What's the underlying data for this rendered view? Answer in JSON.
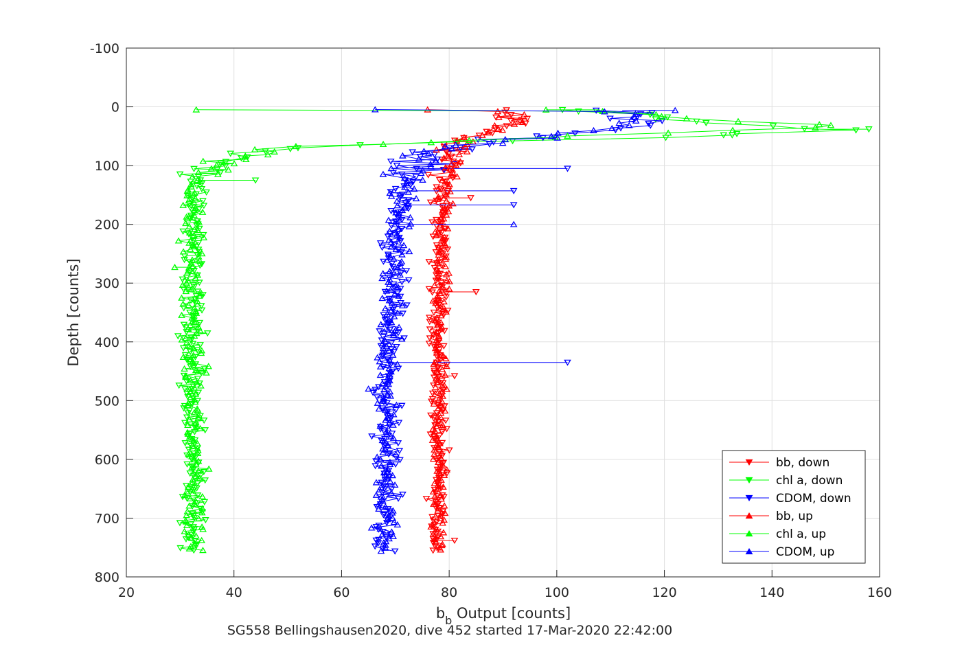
{
  "chart_data": {
    "type": "scatter",
    "xlabel_base": "b",
    "xlabel_sub": "b",
    "xlabel_rest": " Output [counts]",
    "ylabel": "Depth [counts]",
    "caption": "SG558 Bellingshausen2020, dive 452 started 17-Mar-2020 22:42:00",
    "xlim": [
      20,
      160
    ],
    "ylim": [
      -100,
      800
    ],
    "y_reversed": true,
    "grid": true,
    "legend_position": "bottom-right",
    "x_ticks": [
      "20",
      "40",
      "60",
      "80",
      "100",
      "120",
      "140",
      "160"
    ],
    "y_ticks": [
      "-100",
      "0",
      "100",
      "200",
      "300",
      "400",
      "500",
      "600",
      "700",
      "800"
    ],
    "series": [
      {
        "name": "bb, down",
        "color": "#ff0000",
        "marker": "triangle-down",
        "profile": [
          [
            5,
            89
          ],
          [
            30,
            92
          ],
          [
            45,
            86
          ],
          [
            60,
            82
          ],
          [
            80,
            80
          ],
          [
            100,
            79
          ],
          [
            150,
            78.5
          ],
          [
            250,
            78
          ],
          [
            400,
            78
          ],
          [
            600,
            78
          ],
          [
            755,
            77.5
          ]
        ],
        "spread": 1.2,
        "outliers": [
          [
            155,
            84
          ],
          [
            315,
            85
          ],
          [
            458,
            81
          ],
          [
            738,
            81
          ]
        ]
      },
      {
        "name": "chl a, down",
        "color": "#00ff00",
        "marker": "triangle-down",
        "profile": [
          [
            5,
            100
          ],
          [
            15,
            118
          ],
          [
            35,
            140
          ],
          [
            40,
            158
          ],
          [
            55,
            110
          ],
          [
            62,
            70
          ],
          [
            68,
            55
          ],
          [
            75,
            45
          ],
          [
            85,
            40
          ],
          [
            100,
            37
          ],
          [
            115,
            35
          ],
          [
            130,
            33
          ],
          [
            160,
            32.5
          ],
          [
            200,
            32.5
          ],
          [
            300,
            32.5
          ],
          [
            500,
            32.5
          ],
          [
            755,
            32.5
          ]
        ],
        "spread": 1.6,
        "outliers": [
          [
            38,
            158
          ],
          [
            48,
            131
          ],
          [
            125,
            44
          ]
        ]
      },
      {
        "name": "CDOM, down",
        "color": "#0000ff",
        "marker": "triangle-down",
        "profile": [
          [
            5,
            113
          ],
          [
            30,
            118
          ],
          [
            45,
            105
          ],
          [
            55,
            92
          ],
          [
            65,
            82
          ],
          [
            75,
            78
          ],
          [
            90,
            75
          ],
          [
            120,
            72.5
          ],
          [
            170,
            71
          ],
          [
            220,
            70
          ],
          [
            300,
            69.5
          ],
          [
            500,
            68.5
          ],
          [
            700,
            68
          ],
          [
            755,
            68
          ]
        ],
        "spread": 1.8,
        "outliers": [
          [
            105,
            102
          ],
          [
            143,
            92
          ],
          [
            167,
            92
          ],
          [
            435,
            102
          ]
        ]
      },
      {
        "name": "bb, up",
        "color": "#ff0000",
        "marker": "triangle-up",
        "profile": [
          [
            5,
            90
          ],
          [
            25,
            92
          ],
          [
            40,
            88
          ],
          [
            55,
            83
          ],
          [
            70,
            81
          ],
          [
            90,
            79.5
          ],
          [
            150,
            79
          ],
          [
            250,
            78.5
          ],
          [
            400,
            78
          ],
          [
            600,
            78
          ],
          [
            755,
            78
          ]
        ],
        "spread": 1.1,
        "outliers": [
          [
            22,
            93
          ],
          [
            330,
            77
          ]
        ]
      },
      {
        "name": "chl a, up",
        "color": "#00ff00",
        "marker": "triangle-up",
        "profile": [
          [
            5,
            108
          ],
          [
            20,
            125
          ],
          [
            32,
            155
          ],
          [
            45,
            120
          ],
          [
            58,
            80
          ],
          [
            65,
            60
          ],
          [
            72,
            48
          ],
          [
            82,
            42
          ],
          [
            95,
            37
          ],
          [
            110,
            35
          ],
          [
            130,
            33
          ],
          [
            170,
            32
          ],
          [
            300,
            32
          ],
          [
            500,
            32.5
          ],
          [
            755,
            32.5
          ]
        ],
        "spread": 1.6,
        "outliers": [
          [
            5,
            98
          ],
          [
            273,
            29
          ]
        ]
      },
      {
        "name": "CDOM, up",
        "color": "#0000ff",
        "marker": "triangle-up",
        "profile": [
          [
            5,
            112
          ],
          [
            30,
            116
          ],
          [
            50,
            100
          ],
          [
            60,
            88
          ],
          [
            70,
            80
          ],
          [
            85,
            76
          ],
          [
            110,
            73
          ],
          [
            160,
            71
          ],
          [
            250,
            70
          ],
          [
            400,
            69
          ],
          [
            600,
            68.5
          ],
          [
            755,
            68
          ]
        ],
        "spread": 1.7,
        "outliers": [
          [
            6,
            122
          ],
          [
            200,
            92
          ],
          [
            480,
            65
          ]
        ]
      }
    ]
  }
}
